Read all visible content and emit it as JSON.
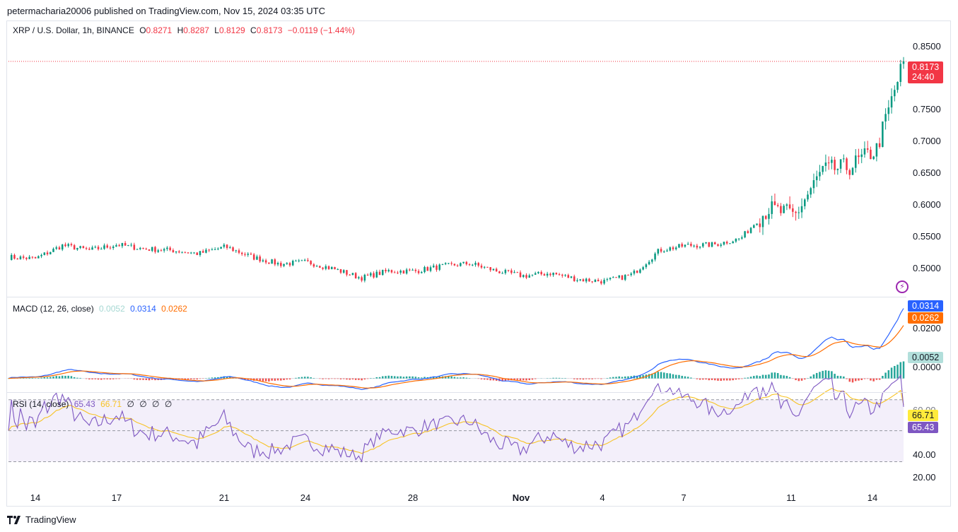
{
  "header": {
    "publisher_line": "petermacharia20006 published on TradingView.com, Nov 15, 2024 03:35 UTC"
  },
  "price_legend": {
    "symbol": "XRP / U.S. Dollar, 1h, BINANCE",
    "o_label": "O",
    "o_value": "0.8271",
    "h_label": "H",
    "h_value": "0.8287",
    "l_label": "L",
    "l_value": "0.8129",
    "c_label": "C",
    "c_value": "0.8173",
    "change": "−0.0119 (−1.44%)"
  },
  "price_axis": {
    "ticks": [
      "0.8500",
      "0.7500",
      "0.7000",
      "0.6500",
      "0.6000",
      "0.5500",
      "0.5000"
    ]
  },
  "price_tag": {
    "value": "0.8173",
    "countdown": "24:40",
    "color": "#f23645"
  },
  "macd_legend": {
    "name": "MACD (12, 26, close)",
    "hist": "0.0052",
    "macd": "0.0314",
    "signal": "0.0262"
  },
  "macd_axis": {
    "ticks": [
      "0.0200",
      "0.0000"
    ],
    "tags": {
      "macd": "0.0314",
      "signal": "0.0262",
      "hist": "0.0052"
    }
  },
  "rsi_legend": {
    "name": "RSI (14, close)",
    "rsi": "65.43",
    "ma": "66.71",
    "extras": [
      "∅",
      "∅",
      "∅",
      "∅"
    ]
  },
  "rsi_axis": {
    "ticks": [
      "60.00",
      "40.00",
      "20.00"
    ],
    "top_tick": "60.00",
    "tags": {
      "ma": "66.71",
      "rsi": "65.43"
    }
  },
  "x_axis": {
    "labels": [
      "14",
      "17",
      "21",
      "24",
      "28",
      "Nov",
      "4",
      "7",
      "11",
      "14"
    ]
  },
  "footer": {
    "brand": "TradingView"
  },
  "colors": {
    "up": "#089981",
    "down": "#f23645",
    "macd": "#2962ff",
    "signal": "#ff6d00",
    "rsi": "#7e57c2",
    "rsi_ma": "#f7c325",
    "band": "#f3effa"
  },
  "chart_data": {
    "type": "candlestick",
    "title": "XRP / U.S. Dollar, 1h, BINANCE",
    "x_categories": [
      "14",
      "17",
      "21",
      "24",
      "28",
      "Nov",
      "4",
      "7",
      "11",
      "14"
    ],
    "price_ylim": [
      0.48,
      0.865
    ],
    "price_close_series": [
      {
        "x": "Oct 13",
        "y": 0.535
      },
      {
        "x": "Oct 14",
        "y": 0.533
      },
      {
        "x": "Oct 15",
        "y": 0.552
      },
      {
        "x": "Oct 16",
        "y": 0.545
      },
      {
        "x": "Oct 17",
        "y": 0.553
      },
      {
        "x": "Oct 18",
        "y": 0.547
      },
      {
        "x": "Oct 19",
        "y": 0.545
      },
      {
        "x": "Oct 20",
        "y": 0.54
      },
      {
        "x": "Oct 21",
        "y": 0.55
      },
      {
        "x": "Oct 22",
        "y": 0.535
      },
      {
        "x": "Oct 23",
        "y": 0.525
      },
      {
        "x": "Oct 24",
        "y": 0.528
      },
      {
        "x": "Oct 25",
        "y": 0.518
      },
      {
        "x": "Oct 26",
        "y": 0.505
      },
      {
        "x": "Oct 27",
        "y": 0.515
      },
      {
        "x": "Oct 28",
        "y": 0.515
      },
      {
        "x": "Oct 29",
        "y": 0.522
      },
      {
        "x": "Oct 30",
        "y": 0.526
      },
      {
        "x": "Oct 31",
        "y": 0.515
      },
      {
        "x": "Nov 1",
        "y": 0.508
      },
      {
        "x": "Nov 2",
        "y": 0.512
      },
      {
        "x": "Nov 3",
        "y": 0.503
      },
      {
        "x": "Nov 4",
        "y": 0.5
      },
      {
        "x": "Nov 5",
        "y": 0.51
      },
      {
        "x": "Nov 6",
        "y": 0.545
      },
      {
        "x": "Nov 7",
        "y": 0.552
      },
      {
        "x": "Nov 8",
        "y": 0.553
      },
      {
        "x": "Nov 9",
        "y": 0.562
      },
      {
        "x": "Nov 10",
        "y": 0.605
      },
      {
        "x": "Nov 11",
        "y": 0.595
      },
      {
        "x": "Nov 12",
        "y": 0.66
      },
      {
        "x": "Nov 13",
        "y": 0.665
      },
      {
        "x": "Nov 14",
        "y": 0.69
      },
      {
        "x": "Nov 15",
        "y": 0.8173
      }
    ],
    "macd_ylim": [
      -0.0055,
      0.036
    ],
    "rsi_ylim": [
      12,
      74
    ],
    "rsi_bands": [
      30,
      50,
      70
    ]
  }
}
